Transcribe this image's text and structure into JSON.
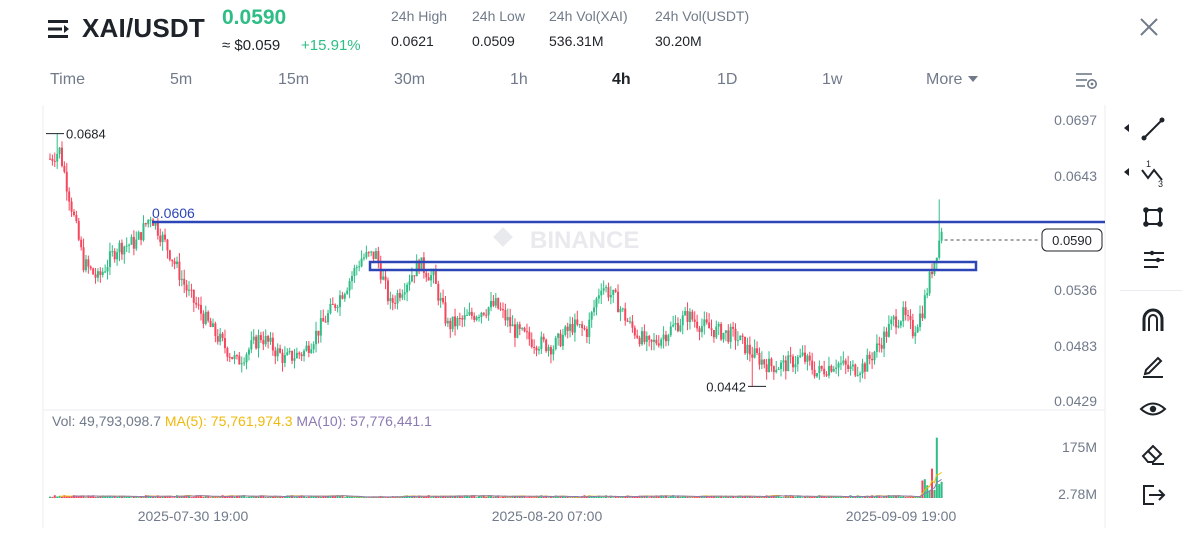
{
  "header": {
    "pair": "XAI/USDT",
    "last_price": "0.0590",
    "usd_price": "≈ $0.059",
    "change": "+15.91%",
    "stats": [
      {
        "label": "24h High",
        "value": "0.0621"
      },
      {
        "label": "24h Low",
        "value": "0.0509"
      },
      {
        "label": "24h Vol(XAI)",
        "value": "536.31M"
      },
      {
        "label": "24h Vol(USDT)",
        "value": "30.20M"
      }
    ]
  },
  "tabs": {
    "items": [
      "Time",
      "5m",
      "15m",
      "30m",
      "1h",
      "4h",
      "1D",
      "1w"
    ],
    "active": "4h",
    "more_label": "More"
  },
  "colors": {
    "up": "#2ebd85",
    "down": "#f6465d",
    "ma5": "#f0b90b",
    "ma10": "#8c7ab3",
    "drawing": "#2c46b7",
    "grid": "#eef0f2"
  },
  "watermark": "BINANCE",
  "chart_data": {
    "type": "candlestick",
    "interval": "4h",
    "y_ticks": [
      "0.0697",
      "0.0643",
      "0.0590",
      "0.0536",
      "0.0483",
      "0.0429"
    ],
    "ylim": [
      0.0429,
      0.0697
    ],
    "x_ticks": [
      "2025-07-30 19:00",
      "2025-08-20 07:00",
      "2025-09-09 19:00"
    ],
    "annotations": {
      "high_label": "0.0684",
      "low_label": "0.0442",
      "resistance_label": "0.0606",
      "current_price": "0.0590"
    },
    "anchors": [
      [
        0,
        0.066
      ],
      [
        4,
        0.0668
      ],
      [
        8,
        0.0625
      ],
      [
        14,
        0.056
      ],
      [
        20,
        0.0545
      ],
      [
        28,
        0.0575
      ],
      [
        36,
        0.058
      ],
      [
        42,
        0.0606
      ],
      [
        50,
        0.057
      ],
      [
        58,
        0.053
      ],
      [
        68,
        0.0495
      ],
      [
        78,
        0.0465
      ],
      [
        88,
        0.049
      ],
      [
        98,
        0.0468
      ],
      [
        106,
        0.0475
      ],
      [
        116,
        0.051
      ],
      [
        124,
        0.054
      ],
      [
        130,
        0.0565
      ],
      [
        136,
        0.0568
      ],
      [
        142,
        0.052
      ],
      [
        148,
        0.054
      ],
      [
        154,
        0.056
      ],
      [
        160,
        0.0545
      ],
      [
        166,
        0.05
      ],
      [
        172,
        0.0505
      ],
      [
        180,
        0.0515
      ],
      [
        186,
        0.052
      ],
      [
        194,
        0.0495
      ],
      [
        202,
        0.0485
      ],
      [
        210,
        0.048
      ],
      [
        218,
        0.05
      ],
      [
        224,
        0.0495
      ],
      [
        230,
        0.054
      ],
      [
        236,
        0.0525
      ],
      [
        242,
        0.05
      ],
      [
        250,
        0.048
      ],
      [
        258,
        0.0495
      ],
      [
        266,
        0.051
      ],
      [
        272,
        0.05
      ],
      [
        278,
        0.0495
      ],
      [
        286,
        0.049
      ],
      [
        292,
        0.0475
      ],
      [
        300,
        0.0462
      ],
      [
        306,
        0.0462
      ],
      [
        314,
        0.047
      ],
      [
        320,
        0.0455
      ],
      [
        328,
        0.0465
      ],
      [
        334,
        0.0458
      ],
      [
        340,
        0.0462
      ],
      [
        346,
        0.0482
      ],
      [
        352,
        0.0505
      ],
      [
        356,
        0.051
      ],
      [
        360,
        0.0495
      ],
      [
        364,
        0.0515
      ],
      [
        368,
        0.0555
      ],
      [
        372,
        0.059
      ]
    ],
    "volume": {
      "value": "49,793,098.7",
      "ma5": "75,761,974.3",
      "ma10": "57,776,441.1",
      "vol_label": "Vol:",
      "ma5_label": "MA(5):",
      "ma10_label": "MA(10):",
      "axis_ticks": [
        "175M",
        "2.78M"
      ],
      "max": 190000000
    }
  },
  "toolbar": {
    "tools": [
      "trend-line-tool",
      "fib-tool",
      "shape-tool",
      "text-tool",
      "magnet-tool",
      "pencil-tool",
      "eye-tool",
      "eraser-tool",
      "exit-tool"
    ]
  }
}
